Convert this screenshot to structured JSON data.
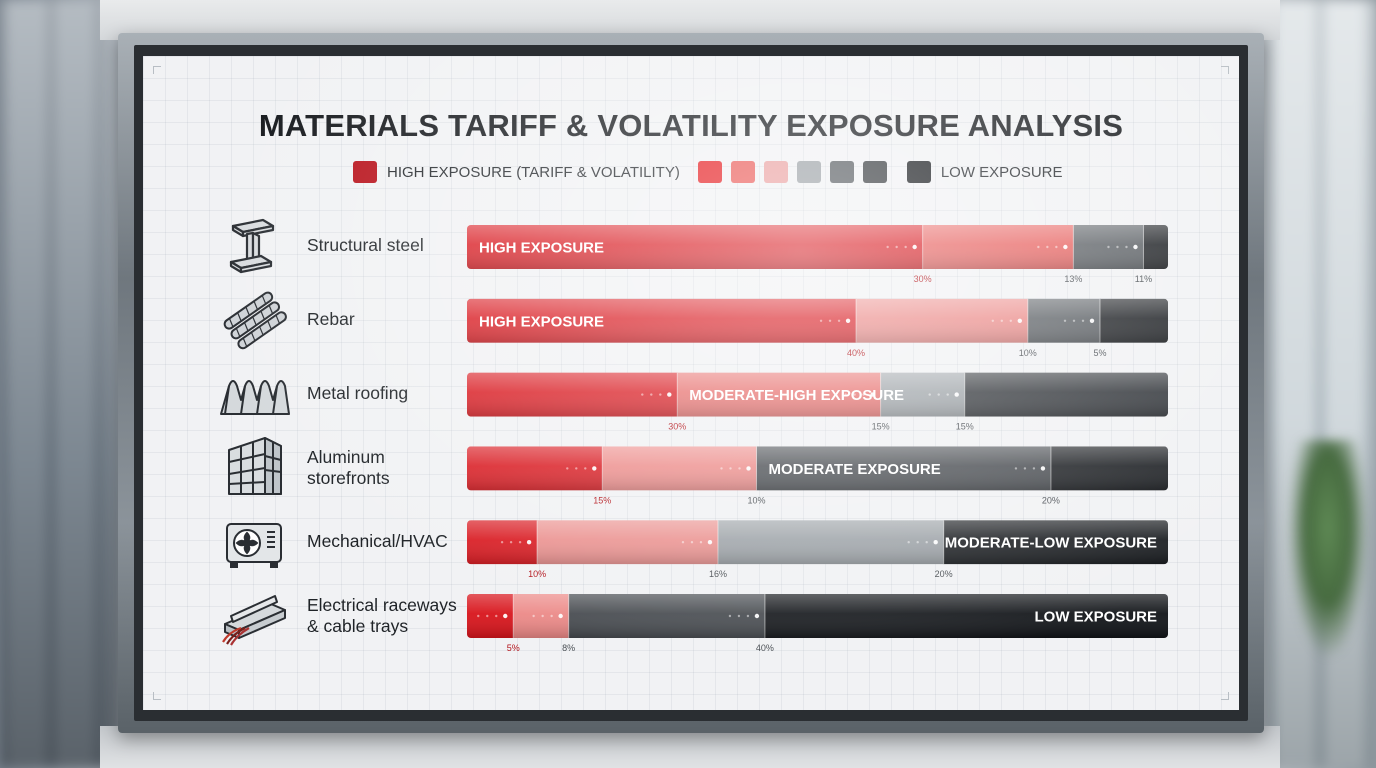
{
  "title": "MATERIALS TARIFF & VOLATILITY EXPOSURE ANALYSIS",
  "legend": {
    "high_label": "HIGH EXPOSURE (TARIFF & VOLATILITY)",
    "low_label": "LOW EXPOSURE",
    "high_color": "#b8111a",
    "low_color": "#15181c",
    "scale_colors": [
      "#e51b1f",
      "#ea5a57",
      "#eaa0a0",
      "#9aa0a5",
      "#54595e",
      "#33373b"
    ]
  },
  "chart_data": {
    "type": "bar",
    "orientation": "horizontal",
    "stacked": true,
    "categories": [
      "Structural steel",
      "Rebar",
      "Metal roofing",
      "Aluminum storefronts",
      "Mechanical/HVAC",
      "Electrical raceways & cable trays"
    ],
    "category_icons": [
      "i-beam-icon",
      "rebar-icon",
      "corrugated-roof-icon",
      "storefront-building-icon",
      "hvac-unit-icon",
      "cable-tray-icon"
    ],
    "rows": [
      {
        "label": "Structural steel",
        "exposure_label": "HIGH EXPOSURE",
        "segments": [
          {
            "share": 65,
            "color": "#d8141b",
            "pct": "30%"
          },
          {
            "share": 21.5,
            "color": "#e65a58",
            "pct": "13%"
          },
          {
            "share": 10,
            "color": "#54595e",
            "pct": "11%"
          },
          {
            "share": 3.5,
            "color": "#15181c",
            "pct": ""
          }
        ]
      },
      {
        "label": "Rebar",
        "exposure_label": "HIGH EXPOSURE",
        "segments": [
          {
            "share": 55.5,
            "color": "#d8141b",
            "pct": "40%"
          },
          {
            "share": 24.5,
            "color": "#ea8583",
            "pct": "10%"
          },
          {
            "share": 10.3,
            "color": "#54595e",
            "pct": "5%"
          },
          {
            "share": 9.7,
            "color": "#15181c",
            "pct": ""
          }
        ]
      },
      {
        "label": "Metal roofing",
        "exposure_label": "MODERATE-HIGH EXPOSURE",
        "segments": [
          {
            "share": 30,
            "color": "#d8141b",
            "pct": "30%"
          },
          {
            "share": 29,
            "color": "#e66a68",
            "pct": "15%"
          },
          {
            "share": 12,
            "color": "#9aa0a5",
            "pct": "15%"
          },
          {
            "share": 29,
            "color": "#2a2e33",
            "pct": ""
          }
        ]
      },
      {
        "label": "Aluminum storefronts",
        "exposure_label": "MODERATE EXPOSURE",
        "segments": [
          {
            "share": 19.3,
            "color": "#d8141b",
            "pct": "15%"
          },
          {
            "share": 22,
            "color": "#ec8886",
            "pct": "10%"
          },
          {
            "share": 42,
            "color": "#44484d",
            "pct": "20%"
          },
          {
            "share": 16.7,
            "color": "#15181c",
            "pct": ""
          }
        ]
      },
      {
        "label": "Mechanical/HVAC",
        "exposure_label": "MODERATE-LOW EXPOSURE",
        "segments": [
          {
            "share": 10,
            "color": "#d8141b",
            "pct": "10%"
          },
          {
            "share": 25.8,
            "color": "#ea8e8c",
            "pct": "16%"
          },
          {
            "share": 32.2,
            "color": "#9aa0a5",
            "pct": "20%"
          },
          {
            "share": 32,
            "color": "#15181c",
            "pct": ""
          }
        ]
      },
      {
        "label": "Electrical raceways & cable trays",
        "exposure_label": "LOW EXPOSURE",
        "segments": [
          {
            "share": 6.6,
            "color": "#d8141b",
            "pct": "5%"
          },
          {
            "share": 7.9,
            "color": "#ec8886",
            "pct": "8%"
          },
          {
            "share": 28,
            "color": "#44484d",
            "pct": "40%"
          },
          {
            "share": 57.5,
            "color": "#111418",
            "pct": ""
          }
        ]
      }
    ],
    "label_segment_index": [
      0,
      0,
      1,
      2,
      3,
      3
    ],
    "label_align": [
      "left",
      "left",
      "left",
      "left",
      "right",
      "right"
    ]
  }
}
